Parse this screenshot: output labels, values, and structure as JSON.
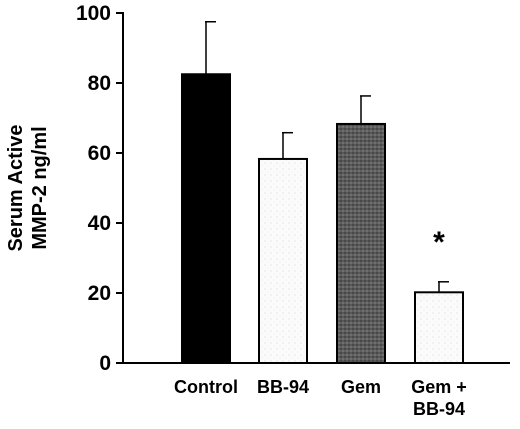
{
  "chart_data": {
    "type": "bar",
    "categories": [
      "Control",
      "BB-94",
      "Gem",
      "Gem +\nBB-94"
    ],
    "values": [
      82.5,
      58.3,
      68.3,
      20.2
    ],
    "errors": [
      15.0,
      7.5,
      8.0,
      3.0
    ],
    "ylabel": "Serum Active\nMMP-2 ng/ml",
    "xlabel": "",
    "ylim": [
      0,
      100
    ],
    "yticks": [
      0,
      20,
      40,
      60,
      80,
      100
    ],
    "grid": false,
    "annotations": [
      {
        "category": "Gem +\nBB-94",
        "text": "*"
      }
    ],
    "bar_fills": [
      "solid-black",
      "white-speckled",
      "dark-gray-stipple",
      "white-speckled"
    ]
  }
}
